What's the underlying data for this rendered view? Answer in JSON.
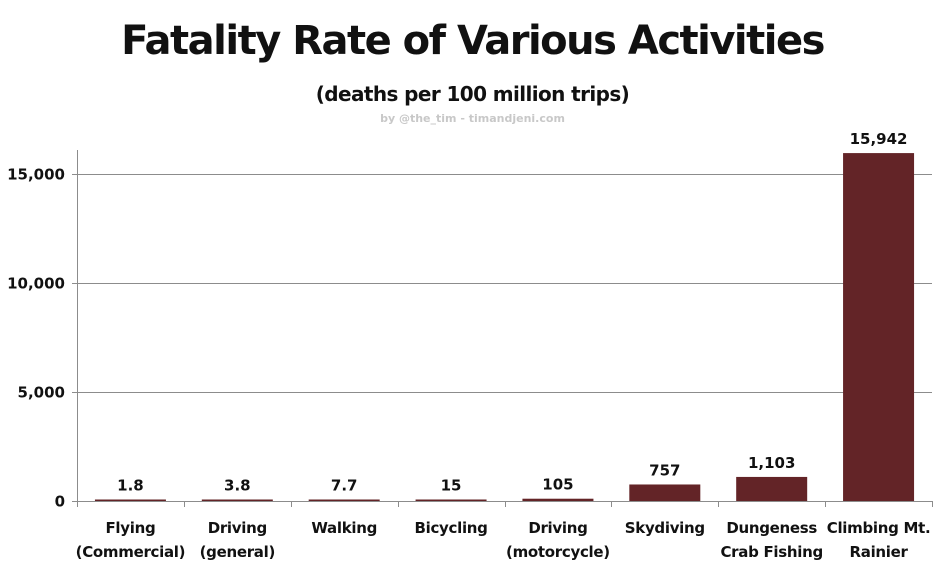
{
  "chart_data": {
    "type": "bar",
    "title": "Fatality Rate of Various Activities",
    "subtitle": "(deaths per 100 million trips)",
    "credit": "by @the_tim - timandjeni.com",
    "categories": [
      [
        "Flying",
        "(Commercial)"
      ],
      [
        "Driving",
        "(general)"
      ],
      [
        "Walking"
      ],
      [
        "Bicycling"
      ],
      [
        "Driving",
        "(motorcycle)"
      ],
      [
        "Skydiving"
      ],
      [
        "Dungeness",
        "Crab Fishing"
      ],
      [
        "Climbing Mt.",
        "Rainier"
      ]
    ],
    "values": [
      1.8,
      3.8,
      7.7,
      15,
      105,
      757,
      1103,
      15942
    ],
    "data_labels": [
      "1.8",
      "3.8",
      "7.7",
      "15",
      "105",
      "757",
      "1,103",
      "15,942"
    ],
    "ylim": [
      0,
      17000
    ],
    "yticks": [
      0,
      5000,
      10000,
      15000
    ],
    "ytick_labels": [
      "0",
      "5,000",
      "10,000",
      "15,000"
    ],
    "xlabel": "",
    "ylabel": "",
    "grid": true,
    "legend": "none",
    "bar_color": "#632427"
  }
}
